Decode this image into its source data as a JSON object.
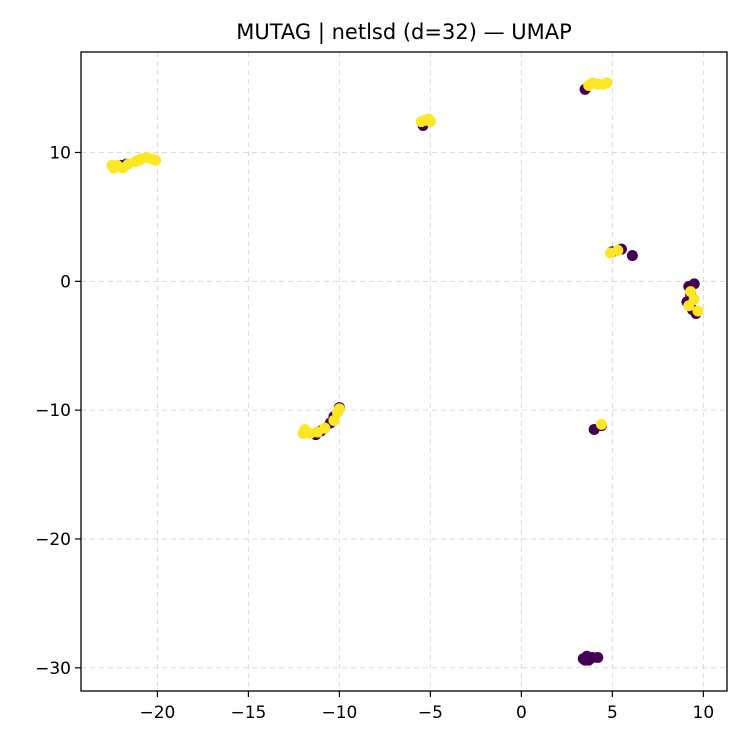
{
  "chart_data": {
    "type": "scatter",
    "title": "MUTAG | netlsd (d=32) — UMAP",
    "xlabel": "",
    "ylabel": "",
    "xlim": [
      -24.2,
      11.3
    ],
    "ylim": [
      -31.8,
      17.8
    ],
    "grid": true,
    "legend": "none",
    "x_ticks": [
      {
        "value": -20,
        "label": "−20"
      },
      {
        "value": -15,
        "label": "−15"
      },
      {
        "value": -10,
        "label": "−10"
      },
      {
        "value": -5,
        "label": "−5"
      },
      {
        "value": 0,
        "label": "0"
      },
      {
        "value": 5,
        "label": "5"
      },
      {
        "value": 10,
        "label": "10"
      }
    ],
    "y_ticks": [
      {
        "value": 10,
        "label": "10"
      },
      {
        "value": 0,
        "label": "0"
      },
      {
        "value": -10,
        "label": "−10"
      },
      {
        "value": -20,
        "label": "−20"
      },
      {
        "value": -30,
        "label": "−30"
      }
    ],
    "colors": {
      "class_0": "#440154",
      "class_1": "#fde725"
    },
    "series": [
      {
        "color": "#440154",
        "points": [
          [
            -22.0,
            9.0
          ],
          [
            -21.7,
            9.1
          ],
          [
            -5.4,
            12.1
          ],
          [
            3.5,
            14.9
          ],
          [
            5.0,
            2.3
          ],
          [
            5.5,
            2.5
          ],
          [
            6.1,
            2.0
          ],
          [
            9.2,
            -0.4
          ],
          [
            9.5,
            -0.2
          ],
          [
            9.3,
            -1.0
          ],
          [
            9.1,
            -1.6
          ],
          [
            9.4,
            -2.2
          ],
          [
            9.6,
            -2.5
          ],
          [
            -11.3,
            -11.9
          ],
          [
            -11.0,
            -11.6
          ],
          [
            -10.5,
            -11.0
          ],
          [
            -10.3,
            -10.5
          ],
          [
            -10.0,
            -9.8
          ],
          [
            4.0,
            -11.5
          ],
          [
            4.4,
            -11.2
          ],
          [
            3.4,
            -29.3
          ],
          [
            3.6,
            -29.1
          ],
          [
            3.7,
            -29.4
          ],
          [
            3.9,
            -29.2
          ],
          [
            4.2,
            -29.2
          ],
          [
            3.5,
            -29.4
          ]
        ]
      },
      {
        "color": "#fde725",
        "points": [
          [
            -22.4,
            8.8
          ],
          [
            -22.2,
            9.0
          ],
          [
            -21.9,
            8.8
          ],
          [
            -21.6,
            9.1
          ],
          [
            -21.2,
            9.3
          ],
          [
            -20.9,
            9.5
          ],
          [
            -20.6,
            9.6
          ],
          [
            -20.3,
            9.5
          ],
          [
            -20.1,
            9.4
          ],
          [
            -22.5,
            9.0
          ],
          [
            -21.0,
            9.4
          ],
          [
            -5.3,
            12.5
          ],
          [
            -5.1,
            12.6
          ],
          [
            -5.0,
            12.4
          ],
          [
            -5.5,
            12.4
          ],
          [
            3.7,
            15.2
          ],
          [
            3.9,
            15.4
          ],
          [
            4.2,
            15.3
          ],
          [
            4.5,
            15.3
          ],
          [
            4.7,
            15.4
          ],
          [
            4.9,
            2.2
          ],
          [
            5.3,
            2.4
          ],
          [
            9.3,
            -0.8
          ],
          [
            9.2,
            -1.9
          ],
          [
            9.5,
            -1.4
          ],
          [
            9.7,
            -2.3
          ],
          [
            -12.0,
            -11.8
          ],
          [
            -11.9,
            -11.5
          ],
          [
            -11.6,
            -11.8
          ],
          [
            -11.2,
            -11.7
          ],
          [
            -10.8,
            -11.4
          ],
          [
            -10.3,
            -10.8
          ],
          [
            -10.1,
            -10.2
          ],
          [
            -10.0,
            -9.9
          ],
          [
            4.4,
            -11.1
          ]
        ]
      }
    ]
  }
}
